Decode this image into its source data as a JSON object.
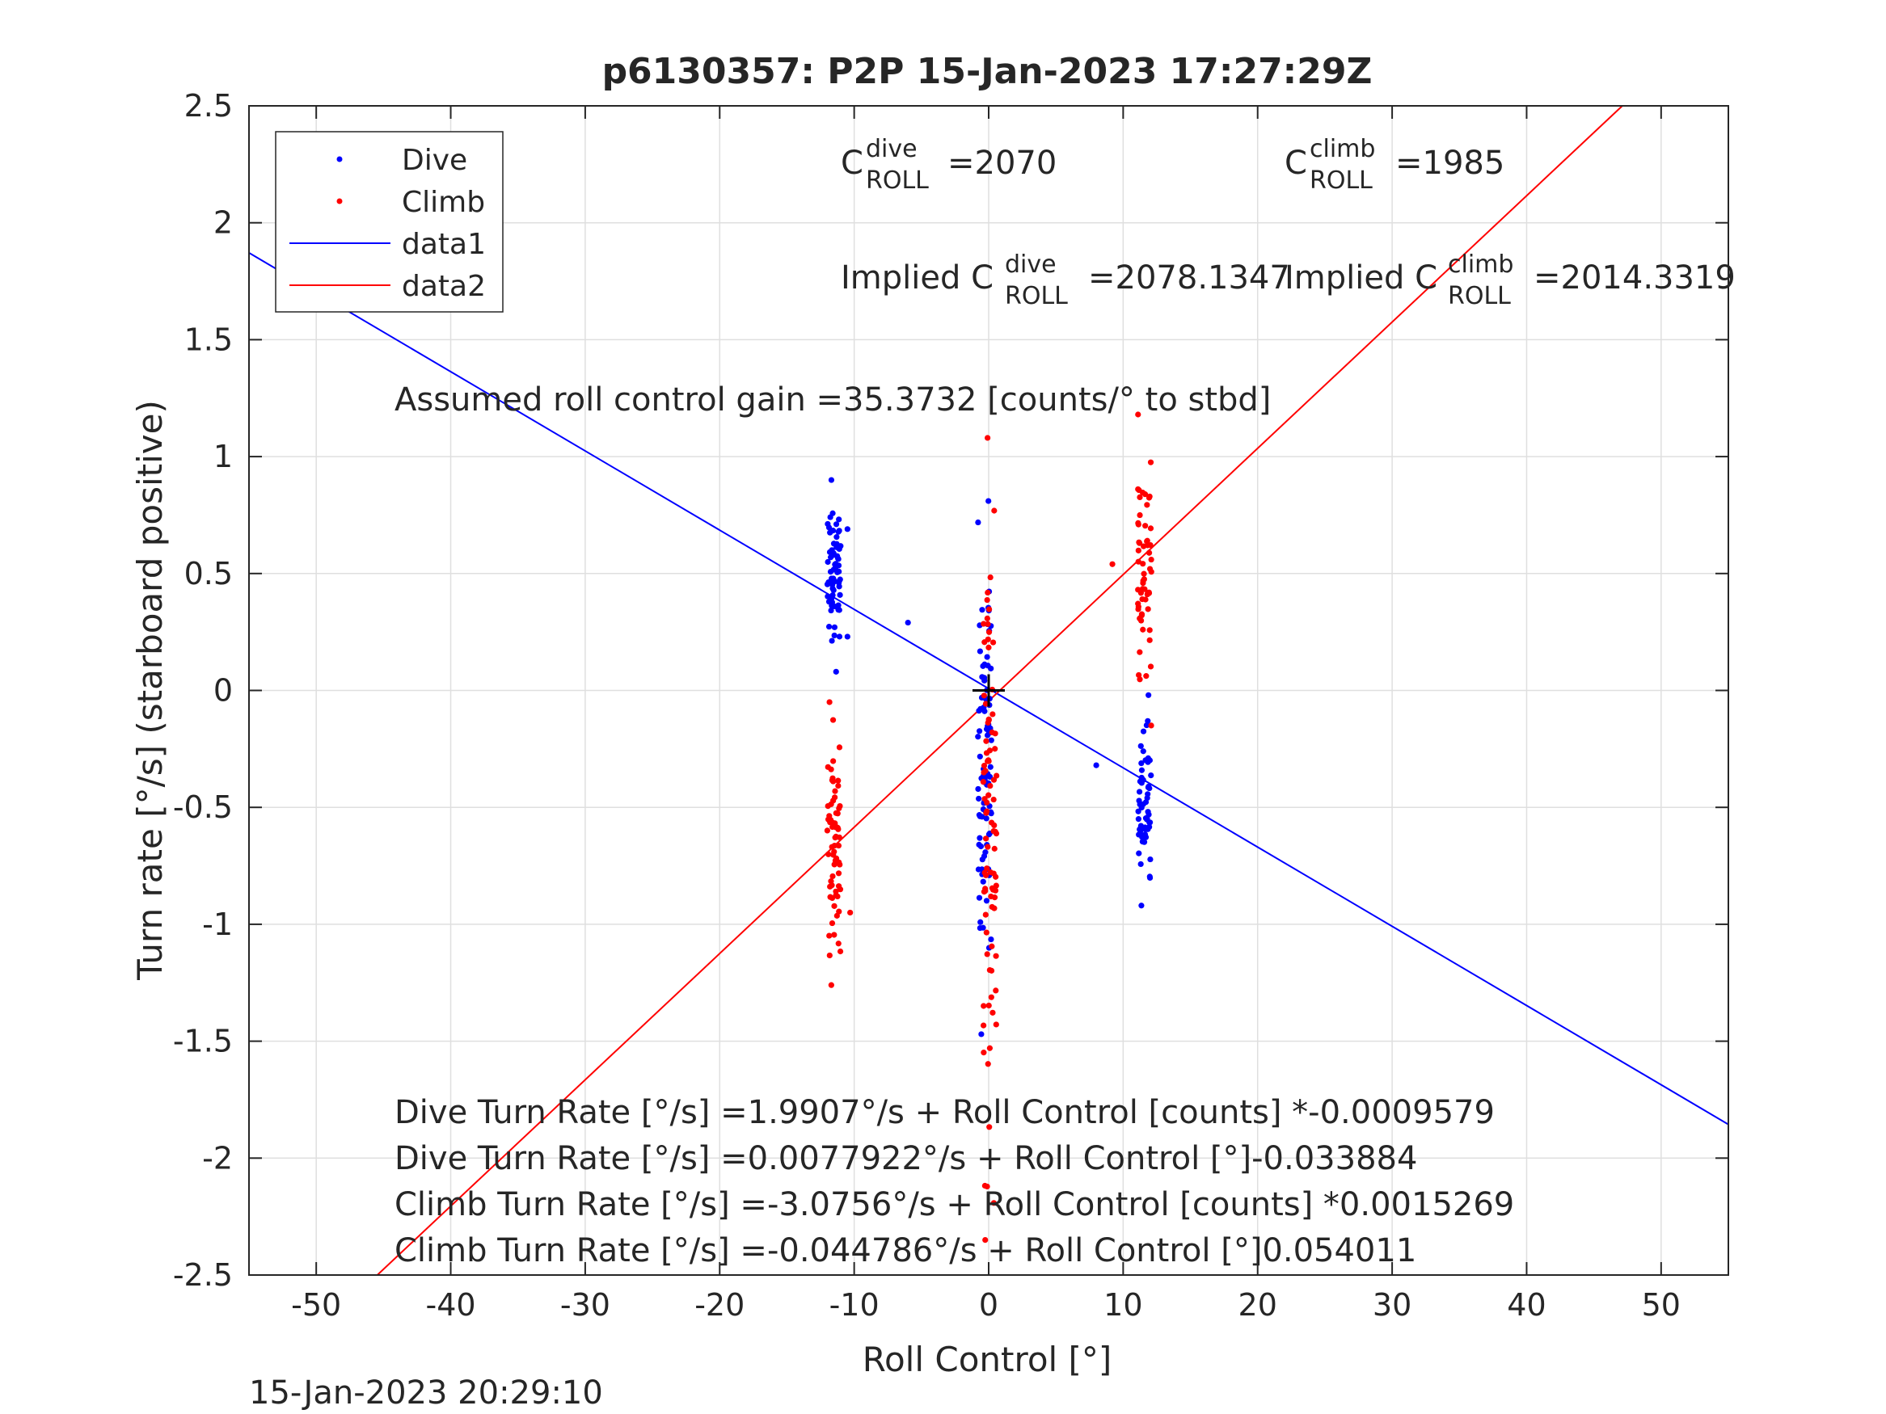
{
  "chart_data": {
    "type": "scatter",
    "title": "p6130357: P2P 15-Jan-2023 17:27:29Z",
    "xlabel": "Roll Control [°]",
    "ylabel": "Turn rate [°/s] (starboard positive)",
    "xlim": [
      -55,
      55
    ],
    "ylim": [
      -2.5,
      2.5
    ],
    "xticks": [
      -50,
      -40,
      -30,
      -20,
      -10,
      0,
      10,
      20,
      30,
      40,
      50
    ],
    "xtick_labels": [
      "-50",
      "-40",
      "-30",
      "-20",
      "-10",
      "0",
      "10",
      "20",
      "30",
      "40",
      "50"
    ],
    "yticks": [
      2.5,
      2,
      1.5,
      1,
      0.5,
      0,
      -0.5,
      -1,
      -1.5,
      -2,
      -2.5
    ],
    "ytick_labels": [
      "2.5",
      "2",
      "1.5",
      "1",
      "0.5",
      "0",
      "-0.5",
      "-1",
      "-1.5",
      "-2",
      "-2.5"
    ],
    "grid": true,
    "legend_position": "top-left",
    "legend": [
      "Dive",
      "Climb",
      "data1",
      "data2"
    ],
    "colors": {
      "dive": "#0000ff",
      "climb": "#ff0000",
      "marker": "#000000"
    },
    "series": [
      {
        "name": "Dive",
        "kind": "points",
        "color": "#0000ff",
        "clusters": [
          {
            "x": -11.5,
            "y_range": [
              0.08,
              0.9
            ]
          },
          {
            "x": -0.3,
            "y_range": [
              -1.47,
              0.81
            ]
          },
          {
            "x": 11.6,
            "y_range": [
              -0.92,
              -0.02
            ]
          }
        ],
        "extra_points": [
          [
            -6,
            0.29
          ],
          [
            8,
            -0.32
          ],
          [
            -10.5,
            0.69
          ],
          [
            -10.5,
            0.23
          ]
        ]
      },
      {
        "name": "Climb",
        "kind": "points",
        "color": "#ff0000",
        "clusters": [
          {
            "x": -11.5,
            "y_range": [
              -1.26,
              -0.05
            ]
          },
          {
            "x": 0.1,
            "y_range": [
              -2.35,
              1.08
            ]
          },
          {
            "x": 11.6,
            "y_range": [
              -0.15,
              1.18
            ]
          }
        ],
        "extra_points": [
          [
            9.2,
            0.54
          ],
          [
            -10.3,
            -0.95
          ]
        ]
      },
      {
        "name": "data1",
        "kind": "line",
        "color": "#0000ff",
        "slope": -0.033884,
        "intercept": 0.0077922
      },
      {
        "name": "data2",
        "kind": "line",
        "color": "#ff0000",
        "slope": 0.054011,
        "intercept": -0.044786
      }
    ],
    "center_marker": {
      "x": 0,
      "y": 0,
      "symbol": "+"
    }
  },
  "annotations": {
    "c_roll_dive": {
      "base": "C",
      "sup": "dive",
      "sub": "ROLL",
      "value": "=2070"
    },
    "c_roll_climb": {
      "base": "C",
      "sup": "climb",
      "sub": "ROLL",
      "value": "=1985"
    },
    "implied_dive": {
      "prefix": "Implied C",
      "sup": "dive",
      "sub": "ROLL",
      "value": "=2078.1347"
    },
    "implied_climb": {
      "prefix": "Implied C",
      "sup": "climb",
      "sub": "ROLL",
      "value": "=2014.3319"
    },
    "gain": "Assumed roll control gain =35.3732 [counts/° to stbd]",
    "fit_lines": [
      "Dive Turn Rate [°/s] =1.9907°/s + Roll Control [counts] *-0.0009579",
      "Dive Turn Rate [°/s] =0.0077922°/s + Roll Control [°]-0.033884",
      "Climb Turn Rate [°/s] =-3.0756°/s + Roll Control [counts] *0.0015269",
      "Climb Turn Rate [°/s] =-0.044786°/s + Roll Control [°]0.054011"
    ]
  },
  "footer_timestamp": "15-Jan-2023 20:29:10"
}
